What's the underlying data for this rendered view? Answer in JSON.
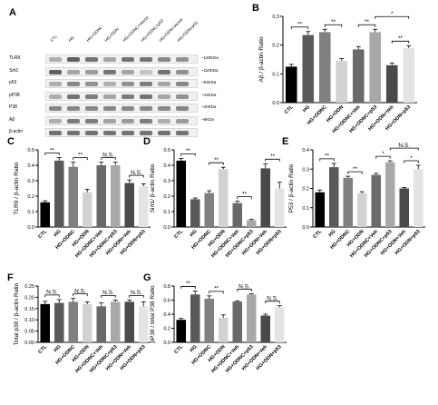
{
  "lanes": [
    "CTL",
    "HG",
    "HG+ODNC",
    "HG+ODN",
    "HG+ODNC+Vector",
    "HG+ODNC+p53",
    "HG+ODN+Vector",
    "HG+ODN+p53"
  ],
  "blot": {
    "panel_label": "A",
    "rows": [
      {
        "protein": "TLR9",
        "mw": "~120KDa",
        "intensity": [
          0.3,
          0.7,
          0.6,
          0.35,
          0.6,
          0.6,
          0.5,
          0.45
        ]
      },
      {
        "protein": "Sirt1",
        "mw": "~110KDa",
        "intensity": [
          0.7,
          0.35,
          0.4,
          0.6,
          0.35,
          0.2,
          0.6,
          0.45
        ]
      },
      {
        "protein": "p53",
        "mw": "~53KDa",
        "intensity": [
          0.3,
          0.5,
          0.45,
          0.3,
          0.45,
          0.55,
          0.35,
          0.5
        ]
      },
      {
        "protein": "pP38",
        "mw": "~43KDa",
        "intensity": [
          0.3,
          0.6,
          0.55,
          0.35,
          0.55,
          0.6,
          0.35,
          0.45
        ]
      },
      {
        "protein": "P38",
        "mw": "~40KDa",
        "intensity": [
          0.5,
          0.5,
          0.5,
          0.5,
          0.5,
          0.5,
          0.5,
          0.5
        ]
      },
      {
        "protein": "Aβ",
        "mw": "~5KDa",
        "intensity": [
          0.3,
          0.55,
          0.55,
          0.35,
          0.4,
          0.55,
          0.3,
          0.4
        ]
      },
      {
        "protein": "β-actin",
        "mw": "",
        "intensity": [
          0.6,
          0.6,
          0.6,
          0.6,
          0.6,
          0.6,
          0.6,
          0.6
        ]
      }
    ]
  },
  "chart_data": [
    {
      "panel": "B",
      "type": "bar",
      "ylabel": "Aβ / β-actin Ratio",
      "categories": [
        "CTL",
        "HG",
        "HG+ODNC",
        "HG+ODN",
        "HG+ODNC+Veh",
        "HG+ODNC+p53",
        "HG+ODN+Veh",
        "HG+ODN+p53"
      ],
      "values": [
        0.125,
        0.235,
        0.245,
        0.145,
        0.185,
        0.245,
        0.13,
        0.19
      ],
      "errors": [
        0.008,
        0.012,
        0.01,
        0.008,
        0.01,
        0.01,
        0.008,
        0.008
      ],
      "ylim": [
        0,
        0.3
      ],
      "yticks": [
        "0.0",
        "0.1",
        "0.2",
        "0.3"
      ],
      "brackets": [
        {
          "a": 0,
          "b": 1,
          "level": 0,
          "label": "**"
        },
        {
          "a": 2,
          "b": 3,
          "level": 0,
          "label": "**"
        },
        {
          "a": 4,
          "b": 5,
          "level": 0,
          "label": "**"
        },
        {
          "a": 6,
          "b": 7,
          "level": 0,
          "label": "**"
        },
        {
          "a": 5,
          "b": 7,
          "level": 1,
          "label": "*"
        }
      ]
    },
    {
      "panel": "C",
      "type": "bar",
      "ylabel": "TLR9 / β-actin Ratio",
      "categories": [
        "CTL",
        "HG",
        "HG+ODNC",
        "HG+ODN",
        "HG+ODNC+Veh",
        "HG+ODNC+p53",
        "HG+ODN+Veh",
        "HG+ODN+p53"
      ],
      "values": [
        0.16,
        0.43,
        0.39,
        0.225,
        0.4,
        0.4,
        0.285,
        0.265
      ],
      "errors": [
        0.01,
        0.02,
        0.03,
        0.02,
        0.02,
        0.02,
        0.02,
        0.015
      ],
      "ylim": [
        0,
        0.5
      ],
      "yticks": [
        "0.0",
        "0.1",
        "0.2",
        "0.3",
        "0.4",
        "0.5"
      ],
      "brackets": [
        {
          "a": 0,
          "b": 1,
          "level": 0,
          "label": "**"
        },
        {
          "a": 2,
          "b": 3,
          "level": 0,
          "label": "**"
        },
        {
          "a": 4,
          "b": 5,
          "level": 0,
          "label": "N.S."
        },
        {
          "a": 6,
          "b": 7,
          "level": 0,
          "label": "N.S."
        }
      ]
    },
    {
      "panel": "D",
      "type": "bar",
      "ylabel": "Sirt1/ β-actin Ratio",
      "categories": [
        "CTL",
        "HG",
        "HG+ODNC",
        "HG+ODN",
        "HG+ODNC+Veh",
        "HG+ODNC+p53",
        "HG+ODN+Veh",
        "HG+ODN+p53"
      ],
      "values": [
        0.43,
        0.18,
        0.22,
        0.375,
        0.155,
        0.045,
        0.38,
        0.25
      ],
      "errors": [
        0.015,
        0.008,
        0.015,
        0.012,
        0.012,
        0.005,
        0.03,
        0.04
      ],
      "ylim": [
        0,
        0.5
      ],
      "yticks": [
        "0.0",
        "0.1",
        "0.2",
        "0.3",
        "0.4",
        "0.5"
      ],
      "brackets": [
        {
          "a": 0,
          "b": 1,
          "level": 0,
          "label": "**"
        },
        {
          "a": 2,
          "b": 3,
          "level": 0,
          "label": "**"
        },
        {
          "a": 4,
          "b": 5,
          "level": 0,
          "label": "**"
        },
        {
          "a": 6,
          "b": 7,
          "level": 0,
          "label": "**"
        }
      ]
    },
    {
      "panel": "E",
      "type": "bar",
      "ylabel": "P53 / β-actin Ratio",
      "categories": [
        "CTL",
        "HG",
        "HG+ODNC",
        "HG+ODN",
        "HG+ODNC+Veh",
        "HG+ODNC+p53",
        "HG+ODN+Veh",
        "HG+ODN+p53"
      ],
      "values": [
        0.18,
        0.31,
        0.255,
        0.175,
        0.27,
        0.335,
        0.2,
        0.3
      ],
      "errors": [
        0.012,
        0.02,
        0.008,
        0.008,
        0.008,
        0.008,
        0.005,
        0.02
      ],
      "ylim": [
        0,
        0.4
      ],
      "yticks": [
        "0.0",
        "0.1",
        "0.2",
        "0.3",
        "0.4"
      ],
      "brackets": [
        {
          "a": 0,
          "b": 1,
          "level": 0,
          "label": "**"
        },
        {
          "a": 2,
          "b": 3,
          "level": 0,
          "label": "**"
        },
        {
          "a": 4,
          "b": 5,
          "level": 0,
          "label": "*"
        },
        {
          "a": 6,
          "b": 7,
          "level": 0,
          "label": "*"
        },
        {
          "a": 5,
          "b": 7,
          "level": 1,
          "label": "N.S."
        }
      ]
    },
    {
      "panel": "F",
      "type": "bar",
      "ylabel": "Total p38 / β-actin Ratio",
      "categories": [
        "CTL",
        "HG",
        "HG+ODNC",
        "HG+ODN",
        "HG+ODNC+Veh",
        "HG+ODNC+p53",
        "HG+ODN+Veh",
        "HG+ODN+p53"
      ],
      "values": [
        0.17,
        0.175,
        0.18,
        0.17,
        0.16,
        0.18,
        0.18,
        0.16
      ],
      "errors": [
        0.012,
        0.015,
        0.015,
        0.01,
        0.015,
        0.008,
        0.008,
        0.02
      ],
      "ylim": [
        0,
        0.25
      ],
      "yticks": [
        "0.00",
        "0.05",
        "0.10",
        "0.15",
        "0.20",
        "0.25"
      ],
      "brackets": [
        {
          "a": 0,
          "b": 1,
          "level": 0,
          "label": "N.S."
        },
        {
          "a": 2,
          "b": 3,
          "level": 0,
          "label": "N.S."
        },
        {
          "a": 4,
          "b": 5,
          "level": 0,
          "label": "N.S."
        },
        {
          "a": 6,
          "b": 7,
          "level": 0,
          "label": "N.S."
        }
      ]
    },
    {
      "panel": "G",
      "type": "bar",
      "ylabel": "pP38 / total P38 Ratio",
      "categories": [
        "CTL",
        "HG",
        "HG+ODNC",
        "HG+ODN",
        "HG+ODNC+Veh",
        "HG+ODNC+p53",
        "HG+ODN+Veh",
        "HG+ODN+p53"
      ],
      "values": [
        0.32,
        0.68,
        0.62,
        0.35,
        0.58,
        0.68,
        0.38,
        0.5
      ],
      "errors": [
        0.02,
        0.05,
        0.04,
        0.04,
        0.01,
        0.01,
        0.02,
        0.02
      ],
      "ylim": [
        0,
        0.8
      ],
      "yticks": [
        "0.0",
        "0.2",
        "0.4",
        "0.6",
        "0.8"
      ],
      "brackets": [
        {
          "a": 0,
          "b": 1,
          "level": 0,
          "label": "**"
        },
        {
          "a": 2,
          "b": 3,
          "level": 0,
          "label": "**"
        },
        {
          "a": 4,
          "b": 5,
          "level": 0,
          "label": "N.S."
        },
        {
          "a": 6,
          "b": 7,
          "level": 0,
          "label": "N.S."
        }
      ]
    }
  ],
  "bar_colors": [
    "#000000",
    "#5a5a5a",
    "#808080",
    "#d2d2d2",
    "#6a6a6a",
    "#a8a8a8",
    "#4a4a4a",
    "#e4e4e4"
  ]
}
